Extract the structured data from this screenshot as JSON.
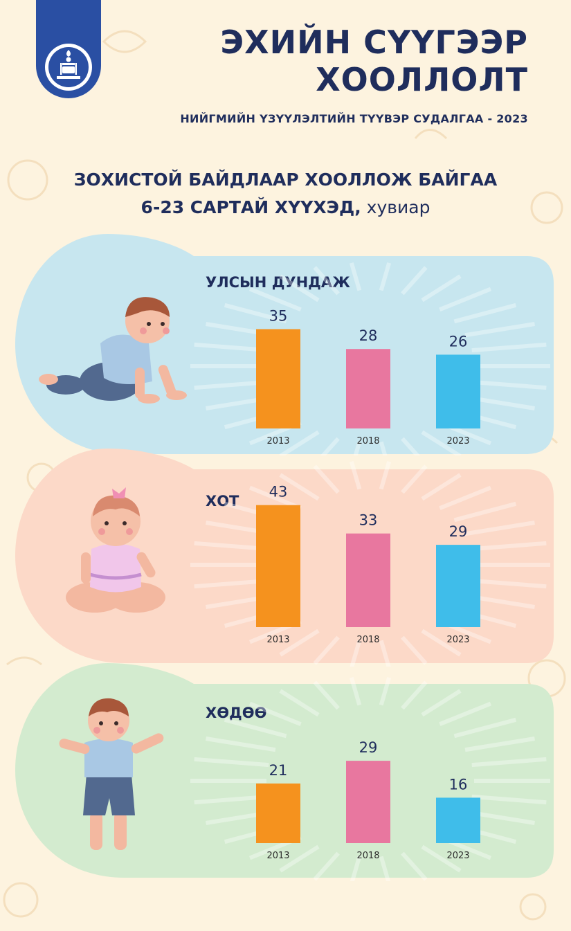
{
  "header": {
    "title_line1": "ЭХИЙН СҮҮГЭЭР",
    "title_line2": "ХООЛЛОЛТ",
    "subtitle": "НИЙГМИЙН ҮЗҮҮЛЭЛТИЙН ТҮҮВЭР СУДАЛГАА - 2023"
  },
  "heading": {
    "line1": "ЗОХИСТОЙ БАЙДЛААР ХООЛЛОЖ БАЙГАА",
    "line2_bold": "6-23 САРТАЙ ХҮҮХЭД,",
    "line2_unit": " хувиар"
  },
  "logo_icon": "soyombo-emblem-icon",
  "colors": {
    "background": "#fdf3df",
    "title": "#1f2d5c",
    "bar_2013": "#f5921e",
    "bar_2018": "#e8779f",
    "bar_2023": "#3fbdea",
    "panel_national": "#c7e6ef",
    "panel_city": "#fcd9c8",
    "panel_rural": "#d3ebcf"
  },
  "chart_data": [
    {
      "type": "bar",
      "title": "УЛСЫН ДУНДАЖ",
      "categories": [
        "2013",
        "2018",
        "2023"
      ],
      "values": [
        35,
        28,
        26
      ],
      "ylim": [
        0,
        45
      ]
    },
    {
      "type": "bar",
      "title": "ХОТ",
      "categories": [
        "2013",
        "2018",
        "2023"
      ],
      "values": [
        43,
        33,
        29
      ],
      "ylim": [
        0,
        45
      ]
    },
    {
      "type": "bar",
      "title": "ХӨДӨӨ",
      "categories": [
        "2013",
        "2018",
        "2023"
      ],
      "values": [
        21,
        29,
        16
      ],
      "ylim": [
        0,
        45
      ]
    }
  ]
}
